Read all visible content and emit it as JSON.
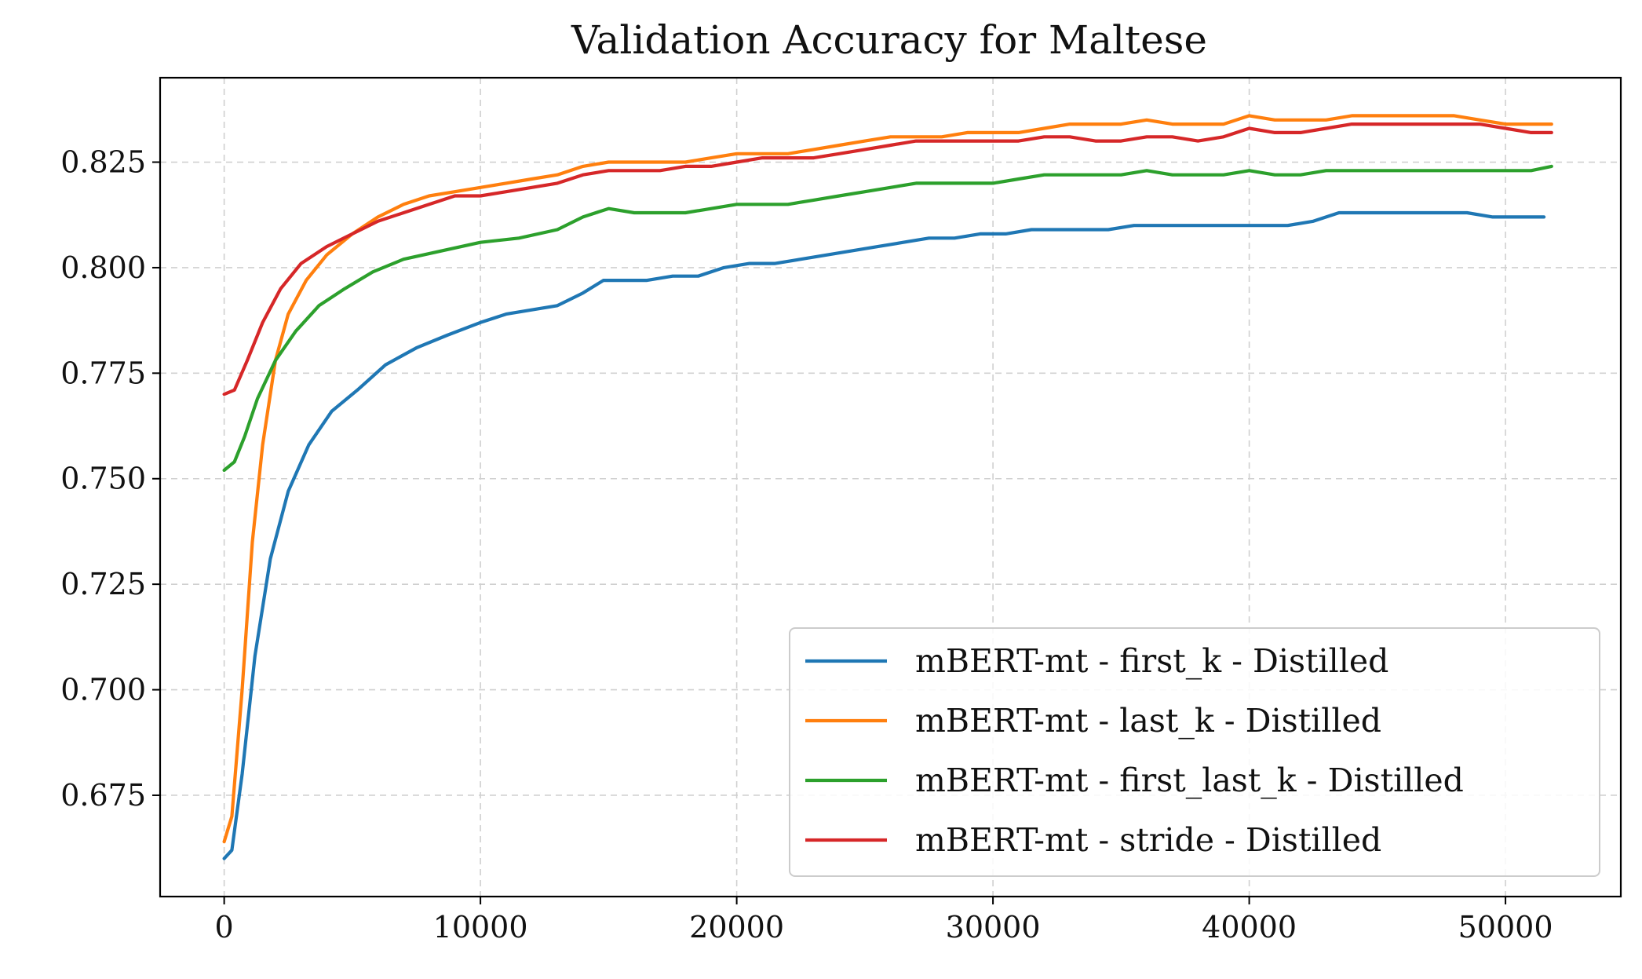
{
  "chart_data": {
    "type": "line",
    "title": "Validation Accuracy for Maltese",
    "xlabel": "",
    "ylabel": "",
    "xlim": [
      -2500,
      54500
    ],
    "ylim": [
      0.651,
      0.845
    ],
    "xticks": [
      0,
      10000,
      20000,
      30000,
      40000,
      50000
    ],
    "xtick_labels": [
      "0",
      "10000",
      "20000",
      "30000",
      "40000",
      "50000"
    ],
    "yticks": [
      0.675,
      0.7,
      0.725,
      0.75,
      0.775,
      0.8,
      0.825
    ],
    "ytick_labels": [
      "0.675",
      "0.700",
      "0.725",
      "0.750",
      "0.775",
      "0.800",
      "0.825"
    ],
    "grid": true,
    "legend_position": "lower-right",
    "series": [
      {
        "name": "mBERT-mt - first_k - Distilled",
        "color": "#1f77b4",
        "x": [
          0,
          300,
          700,
          1200,
          1800,
          2500,
          3300,
          4200,
          5200,
          6300,
          7500,
          8700,
          10000,
          11000,
          12000,
          13000,
          14000,
          14800,
          15500,
          16500,
          17500,
          18500,
          19500,
          20500,
          21500,
          22500,
          23500,
          24500,
          25500,
          26500,
          27500,
          28500,
          29500,
          30500,
          31500,
          32500,
          33500,
          34500,
          35500,
          36500,
          37500,
          38500,
          39500,
          40500,
          41500,
          42500,
          43500,
          44500,
          45500,
          46500,
          47500,
          48500,
          49500,
          50500,
          51500
        ],
        "values": [
          0.66,
          0.662,
          0.68,
          0.708,
          0.731,
          0.747,
          0.758,
          0.766,
          0.771,
          0.777,
          0.781,
          0.784,
          0.787,
          0.789,
          0.79,
          0.791,
          0.794,
          0.797,
          0.797,
          0.797,
          0.798,
          0.798,
          0.8,
          0.801,
          0.801,
          0.802,
          0.803,
          0.804,
          0.805,
          0.806,
          0.807,
          0.807,
          0.808,
          0.808,
          0.809,
          0.809,
          0.809,
          0.809,
          0.81,
          0.81,
          0.81,
          0.81,
          0.81,
          0.81,
          0.81,
          0.811,
          0.813,
          0.813,
          0.813,
          0.813,
          0.813,
          0.813,
          0.812,
          0.812,
          0.812
        ]
      },
      {
        "name": "mBERT-mt - last_k - Distilled",
        "color": "#ff7f0e",
        "x": [
          0,
          300,
          700,
          1100,
          1500,
          2000,
          2500,
          3200,
          4000,
          5000,
          6000,
          7000,
          8000,
          9000,
          10000,
          11000,
          12000,
          13000,
          14000,
          15000,
          16000,
          17000,
          18000,
          19000,
          20000,
          21000,
          22000,
          23000,
          24000,
          25000,
          26000,
          27000,
          28000,
          29000,
          30000,
          31000,
          32000,
          33000,
          34000,
          35000,
          36000,
          37000,
          38000,
          39000,
          40000,
          41000,
          42000,
          43000,
          44000,
          45000,
          46000,
          47000,
          48000,
          49000,
          50000,
          51000,
          51800
        ],
        "values": [
          0.664,
          0.67,
          0.7,
          0.735,
          0.758,
          0.778,
          0.789,
          0.797,
          0.803,
          0.808,
          0.812,
          0.815,
          0.817,
          0.818,
          0.819,
          0.82,
          0.821,
          0.822,
          0.824,
          0.825,
          0.825,
          0.825,
          0.825,
          0.826,
          0.827,
          0.827,
          0.827,
          0.828,
          0.829,
          0.83,
          0.831,
          0.831,
          0.831,
          0.832,
          0.832,
          0.832,
          0.833,
          0.834,
          0.834,
          0.834,
          0.835,
          0.834,
          0.834,
          0.834,
          0.836,
          0.835,
          0.835,
          0.835,
          0.836,
          0.836,
          0.836,
          0.836,
          0.836,
          0.835,
          0.834,
          0.834,
          0.834
        ]
      },
      {
        "name": "mBERT-mt - first_last_k - Distilled",
        "color": "#2ca02c",
        "x": [
          0,
          400,
          800,
          1300,
          2000,
          2800,
          3700,
          4700,
          5800,
          7000,
          8500,
          10000,
          11500,
          13000,
          14000,
          15000,
          16000,
          17000,
          18000,
          19000,
          20000,
          21000,
          22000,
          23000,
          24000,
          25000,
          26000,
          27000,
          28000,
          29000,
          30000,
          31000,
          32000,
          33000,
          34000,
          35000,
          36000,
          37000,
          38000,
          39000,
          40000,
          41000,
          42000,
          43000,
          44000,
          45000,
          46000,
          47000,
          48000,
          49000,
          50000,
          51000,
          51800
        ],
        "values": [
          0.752,
          0.754,
          0.76,
          0.769,
          0.778,
          0.785,
          0.791,
          0.795,
          0.799,
          0.802,
          0.804,
          0.806,
          0.807,
          0.809,
          0.812,
          0.814,
          0.813,
          0.813,
          0.813,
          0.814,
          0.815,
          0.815,
          0.815,
          0.816,
          0.817,
          0.818,
          0.819,
          0.82,
          0.82,
          0.82,
          0.82,
          0.821,
          0.822,
          0.822,
          0.822,
          0.822,
          0.823,
          0.822,
          0.822,
          0.822,
          0.823,
          0.822,
          0.822,
          0.823,
          0.823,
          0.823,
          0.823,
          0.823,
          0.823,
          0.823,
          0.823,
          0.823,
          0.824
        ]
      },
      {
        "name": "mBERT-mt - stride - Distilled",
        "color": "#d62728",
        "x": [
          0,
          400,
          900,
          1500,
          2200,
          3000,
          4000,
          5000,
          6000,
          7000,
          8000,
          9000,
          10000,
          11000,
          12000,
          13000,
          14000,
          15000,
          16000,
          17000,
          18000,
          19000,
          20000,
          21000,
          22000,
          23000,
          24000,
          25000,
          26000,
          27000,
          28000,
          29000,
          30000,
          31000,
          32000,
          33000,
          34000,
          35000,
          36000,
          37000,
          38000,
          39000,
          40000,
          41000,
          42000,
          43000,
          44000,
          45000,
          46000,
          47000,
          48000,
          49000,
          50000,
          51000,
          51800
        ],
        "values": [
          0.77,
          0.771,
          0.778,
          0.787,
          0.795,
          0.801,
          0.805,
          0.808,
          0.811,
          0.813,
          0.815,
          0.817,
          0.817,
          0.818,
          0.819,
          0.82,
          0.822,
          0.823,
          0.823,
          0.823,
          0.824,
          0.824,
          0.825,
          0.826,
          0.826,
          0.826,
          0.827,
          0.828,
          0.829,
          0.83,
          0.83,
          0.83,
          0.83,
          0.83,
          0.831,
          0.831,
          0.83,
          0.83,
          0.831,
          0.831,
          0.83,
          0.831,
          0.833,
          0.832,
          0.832,
          0.833,
          0.834,
          0.834,
          0.834,
          0.834,
          0.834,
          0.834,
          0.833,
          0.832,
          0.832
        ]
      }
    ]
  }
}
